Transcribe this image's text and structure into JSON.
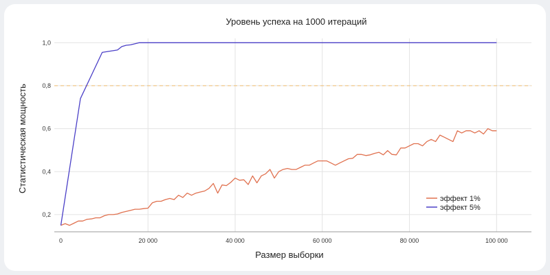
{
  "chart_data": {
    "type": "line",
    "title": "Уровень успеха на 1000 итераций",
    "xlabel": "Размер выборки",
    "ylabel": "Статистическая мощность",
    "xlim": [
      -1500,
      108000
    ],
    "ylim": [
      0.12,
      1.02
    ],
    "xticks": [
      0,
      20000,
      40000,
      60000,
      80000,
      100000
    ],
    "xtick_labels": [
      "0",
      "20 000",
      "40 000",
      "60 000",
      "80 000",
      "100 000"
    ],
    "yticks": [
      0.2,
      0.4,
      0.6,
      0.8,
      1.0
    ],
    "ytick_labels": [
      "0,2",
      "0,4",
      "0,6",
      "0,8",
      "1,0"
    ],
    "reference_line": {
      "y": 0.8,
      "color": "#f0c27a",
      "style": "dashed"
    },
    "grid": true,
    "legend_position": "right",
    "series": [
      {
        "name": "эффект 1%",
        "color": "#e0704e",
        "x": [
          0,
          1000,
          2000,
          3000,
          4000,
          5000,
          6000,
          7000,
          8000,
          9000,
          10000,
          11000,
          12000,
          13000,
          14000,
          15000,
          16000,
          17000,
          18000,
          19000,
          20000,
          21000,
          22000,
          23000,
          24000,
          25000,
          26000,
          27000,
          28000,
          29000,
          30000,
          31000,
          32000,
          33000,
          34000,
          35000,
          36000,
          37000,
          38000,
          39000,
          40000,
          41000,
          42000,
          43000,
          44000,
          45000,
          46000,
          47000,
          48000,
          49000,
          50000,
          51000,
          52000,
          53000,
          54000,
          55000,
          56000,
          57000,
          58000,
          59000,
          60000,
          61000,
          62000,
          63000,
          64000,
          65000,
          66000,
          67000,
          68000,
          69000,
          70000,
          71000,
          72000,
          73000,
          74000,
          75000,
          76000,
          77000,
          78000,
          79000,
          80000,
          81000,
          82000,
          83000,
          84000,
          85000,
          86000,
          87000,
          88000,
          89000,
          90000,
          91000,
          92000,
          93000,
          94000,
          95000,
          96000,
          97000,
          98000,
          99000,
          100000
        ],
        "values": [
          0.15,
          0.158,
          0.15,
          0.16,
          0.17,
          0.17,
          0.178,
          0.18,
          0.185,
          0.185,
          0.195,
          0.2,
          0.2,
          0.203,
          0.21,
          0.215,
          0.22,
          0.225,
          0.225,
          0.228,
          0.23,
          0.255,
          0.262,
          0.262,
          0.27,
          0.275,
          0.27,
          0.29,
          0.28,
          0.3,
          0.29,
          0.3,
          0.305,
          0.31,
          0.322,
          0.345,
          0.3,
          0.338,
          0.335,
          0.35,
          0.37,
          0.36,
          0.362,
          0.34,
          0.38,
          0.348,
          0.38,
          0.39,
          0.41,
          0.37,
          0.4,
          0.41,
          0.415,
          0.41,
          0.41,
          0.42,
          0.43,
          0.43,
          0.44,
          0.45,
          0.45,
          0.45,
          0.44,
          0.43,
          0.44,
          0.45,
          0.46,
          0.462,
          0.48,
          0.48,
          0.475,
          0.478,
          0.485,
          0.49,
          0.478,
          0.498,
          0.48,
          0.478,
          0.51,
          0.51,
          0.52,
          0.53,
          0.53,
          0.52,
          0.54,
          0.55,
          0.54,
          0.57,
          0.56,
          0.55,
          0.54,
          0.59,
          0.58,
          0.59,
          0.59,
          0.58,
          0.59,
          0.575,
          0.6,
          0.59,
          0.59
        ]
      },
      {
        "name": "эффект 5%",
        "color": "#4a3fc7",
        "x": [
          0,
          4500,
          9500,
          13000,
          14000,
          15000,
          16000,
          18000,
          20000,
          25000,
          30000,
          40000,
          50000,
          60000,
          70000,
          80000,
          90000,
          100000
        ],
        "values": [
          0.15,
          0.74,
          0.955,
          0.966,
          0.982,
          0.988,
          0.99,
          1.0,
          1.0,
          1.0,
          1.0,
          1.0,
          1.0,
          1.0,
          1.0,
          1.0,
          1.0,
          1.0
        ]
      }
    ]
  }
}
